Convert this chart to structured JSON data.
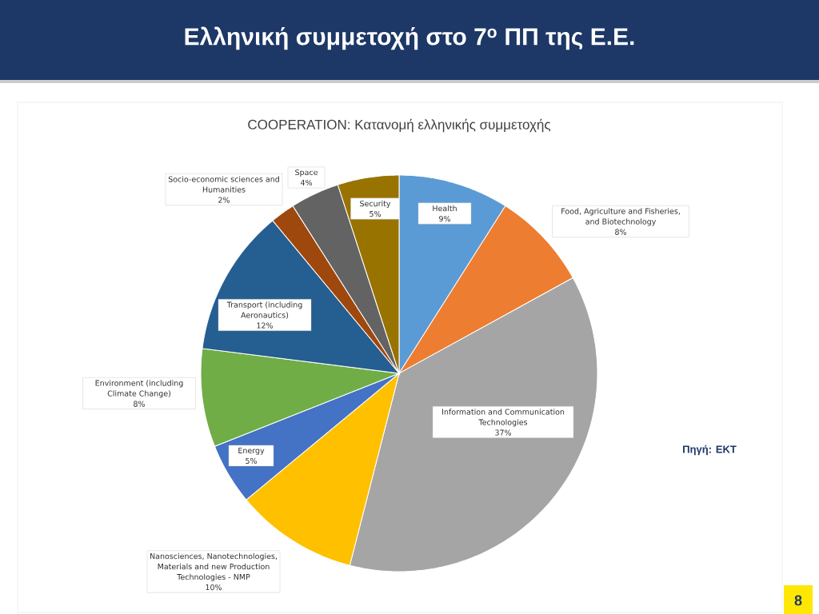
{
  "chart_data": {
    "type": "pie",
    "title": "Ελληνική συμμετοχή στο 7$^{o}$ ΠΠ της Ε.Ε.",
    "subtitle": "COOPERATION: Κατανομή ελληνικής συμμετοχής",
    "categories": [
      "Health",
      "Food, Agriculture and Fisheries, and Biotechnology",
      "Information and Communication Technologies",
      "Nanosciences, Nanotechnologies, Materials and new Production Technologies - NMP",
      "Energy",
      "Environment (including Climate Change)",
      "Transport (including Aeronautics)",
      "Socio-economic sciences and Humanities",
      "Space",
      "Security"
    ],
    "values": [
      9,
      8,
      37,
      10,
      5,
      8,
      12,
      2,
      4,
      5
    ],
    "value_labels": [
      "9%",
      "8%",
      "37%",
      "10%",
      "5%",
      "8%",
      "12%",
      "2%",
      "4%",
      "5%"
    ],
    "colors": [
      "#5b9bd5",
      "#ed7d31",
      "#a5a5a5",
      "#ffc000",
      "#4472c4",
      "#70ad47",
      "#255e91",
      "#9e480e",
      "#636363",
      "#997300"
    ],
    "annotations": [
      "Πηγή: ΕΚΤ",
      "8"
    ]
  }
}
